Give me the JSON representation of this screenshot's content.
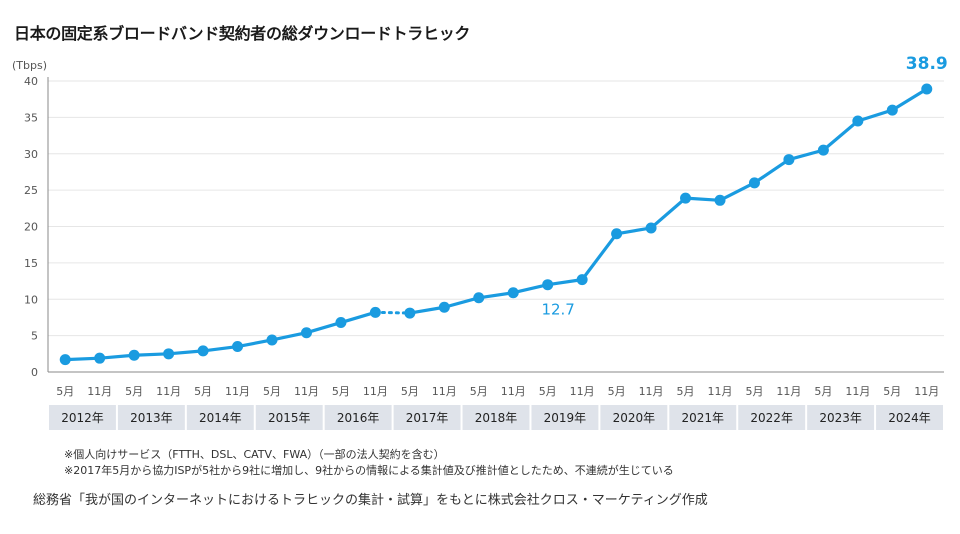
{
  "title": "日本の固定系ブロードバンド契約者の総ダウンロードトラヒック",
  "notes": [
    "※個人向けサービス（FTTH、DSL、CATV、FWA）（一部の法人契約を含む）",
    "※2017年5月から協力ISPが5社から9社に増加し、9社からの情報による集計値及び推計値としたため、不連続が生じている"
  ],
  "source": "総務省「我が国のインターネットにおけるトラヒックの集計・試算」をもとに株式会社クロス・マーケティング作成",
  "colors": {
    "line": "#1a9be0",
    "label": "#1a9be0",
    "axis": "#555555",
    "grid": "#e6e6e6",
    "year_band": "#dfe3ea"
  },
  "chart_data": {
    "type": "line",
    "title": "日本の固定系ブロードバンド契約者の総ダウンロードトラヒック",
    "ylabel": "(Tbps)",
    "ylim": [
      0,
      40
    ],
    "yticks": [
      0,
      5,
      10,
      15,
      20,
      25,
      30,
      35,
      40
    ],
    "months": [
      "5月",
      "11月",
      "5月",
      "11月",
      "5月",
      "11月",
      "5月",
      "11月",
      "5月",
      "11月",
      "5月",
      "11月",
      "5月",
      "11月",
      "5月",
      "11月",
      "5月",
      "11月",
      "5月",
      "11月",
      "5月",
      "11月",
      "5月",
      "11月",
      "5月",
      "11月"
    ],
    "years": [
      "2012年",
      "2013年",
      "2014年",
      "2015年",
      "2016年",
      "2017年",
      "2018年",
      "2019年",
      "2020年",
      "2021年",
      "2022年",
      "2023年",
      "2024年"
    ],
    "values": [
      1.7,
      1.9,
      2.3,
      2.5,
      2.9,
      3.5,
      4.4,
      5.4,
      6.8,
      8.2,
      8.1,
      8.9,
      10.2,
      10.9,
      12.0,
      12.7,
      19.0,
      19.8,
      23.9,
      23.6,
      26.0,
      29.2,
      30.5,
      34.5,
      36.0,
      38.9
    ],
    "discontinuity_after_index": 9,
    "annotations": [
      {
        "index": 15,
        "label": "12.7"
      },
      {
        "index": 25,
        "label": "38.9"
      }
    ]
  }
}
